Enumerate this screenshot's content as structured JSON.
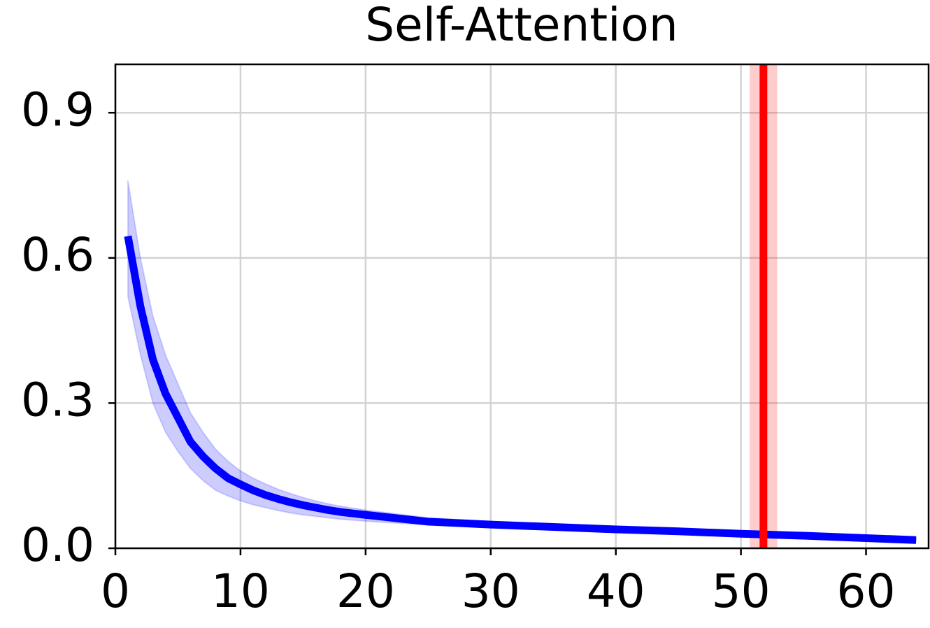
{
  "chart_data": {
    "type": "line",
    "title": "Self-Attention",
    "x": [
      1,
      2,
      3,
      4,
      5,
      6,
      7,
      8,
      9,
      10,
      11,
      12,
      13,
      14,
      15,
      16,
      17,
      18,
      19,
      20,
      25,
      30,
      35,
      40,
      45,
      50,
      55,
      60,
      64
    ],
    "series": [
      {
        "color": "#0000ff",
        "values": [
          0.645,
          0.5,
          0.39,
          0.32,
          0.27,
          0.22,
          0.19,
          0.165,
          0.145,
          0.132,
          0.12,
          0.11,
          0.102,
          0.095,
          0.089,
          0.084,
          0.079,
          0.075,
          0.072,
          0.069,
          0.055,
          0.049,
          0.044,
          0.039,
          0.035,
          0.03,
          0.026,
          0.021,
          0.017
        ],
        "upper": [
          0.76,
          0.6,
          0.48,
          0.4,
          0.34,
          0.28,
          0.24,
          0.205,
          0.18,
          0.16,
          0.145,
          0.133,
          0.122,
          0.113,
          0.105,
          0.098,
          0.092,
          0.087,
          0.083,
          0.079,
          0.063,
          0.055,
          0.049,
          0.044,
          0.039,
          0.034,
          0.03,
          0.024,
          0.02
        ],
        "lower": [
          0.52,
          0.4,
          0.3,
          0.24,
          0.2,
          0.165,
          0.14,
          0.12,
          0.108,
          0.098,
          0.09,
          0.084,
          0.078,
          0.073,
          0.069,
          0.066,
          0.063,
          0.06,
          0.058,
          0.056,
          0.048,
          0.044,
          0.039,
          0.035,
          0.031,
          0.027,
          0.023,
          0.018,
          0.015
        ]
      }
    ],
    "vline": {
      "value": 51.8,
      "band": [
        50.7,
        52.9
      ],
      "color": "#ff0000"
    },
    "xlim": [
      0,
      65
    ],
    "ylim": [
      0,
      1
    ],
    "xticks": [
      0,
      10,
      20,
      30,
      40,
      50,
      60
    ],
    "yticks": [
      {
        "value": 0,
        "label": "0.0"
      },
      0.3,
      0.6,
      0.9
    ],
    "grid": true
  }
}
